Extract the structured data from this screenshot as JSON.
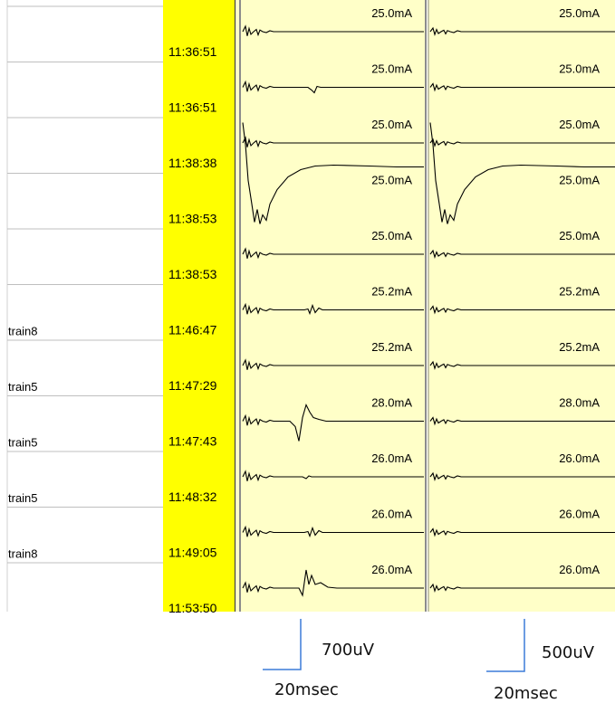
{
  "colors": {
    "timestamp_column": "#ffff00",
    "trace_panel": "#ffffc8",
    "divider": "#8c8c8c",
    "scale_bar": "#3b7bd8",
    "row_line": "#bfbfbf"
  },
  "rows": [
    {
      "name": "",
      "time": "11:36:51",
      "current_1": "25.0mA",
      "current_2": "25.0mA",
      "wave_1": "flat",
      "wave_2": "flat"
    },
    {
      "name": "",
      "time": "11:36:51",
      "current_1": "25.0mA",
      "current_2": "25.0mA",
      "wave_1": "small_dip",
      "wave_2": "flat"
    },
    {
      "name": "",
      "time": "11:38:38",
      "current_1": "25.0mA",
      "current_2": "25.0mA",
      "wave_1": "flat",
      "wave_2": "flat"
    },
    {
      "name": "",
      "time": "11:38:53",
      "current_1": "25.0mA",
      "current_2": "25.0mA",
      "wave_1": "saturation",
      "wave_2": "saturation"
    },
    {
      "name": "",
      "time": "11:38:53",
      "current_1": "25.0mA",
      "current_2": "25.0mA",
      "wave_1": "flat",
      "wave_2": "flat"
    },
    {
      "name": "train8",
      "time": "11:46:47",
      "current_1": "25.2mA",
      "current_2": "25.2mA",
      "wave_1": "small_wiggle",
      "wave_2": "flat"
    },
    {
      "name": "train5",
      "time": "11:47:29",
      "current_1": "25.2mA",
      "current_2": "25.2mA",
      "wave_1": "flat",
      "wave_2": "flat"
    },
    {
      "name": "train5",
      "time": "11:47:43",
      "current_1": "28.0mA",
      "current_2": "28.0mA",
      "wave_1": "large_response",
      "wave_2": "flat"
    },
    {
      "name": "train5",
      "time": "11:48:32",
      "current_1": "26.0mA",
      "current_2": "26.0mA",
      "wave_1": "tiny_blip",
      "wave_2": "flat"
    },
    {
      "name": "train8",
      "time": "11:49:05",
      "current_1": "26.0mA",
      "current_2": "26.0mA",
      "wave_1": "small_wiggle",
      "wave_2": "flat"
    },
    {
      "name": "",
      "time": "11:53:50",
      "current_1": "26.0mA",
      "current_2": "26.0mA",
      "wave_1": "medium_response",
      "wave_2": "flat"
    }
  ],
  "scale_bars": [
    {
      "amplitude": "700uV",
      "time": "20msec"
    },
    {
      "amplitude": "500uV",
      "time": "20msec"
    }
  ]
}
